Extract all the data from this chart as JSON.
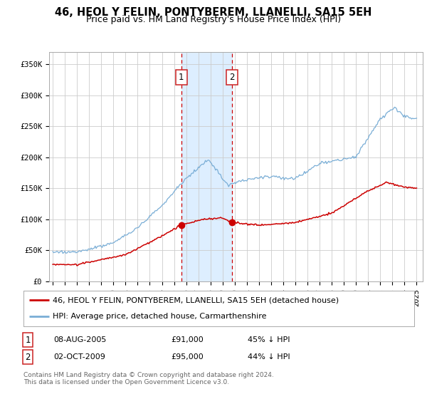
{
  "title": "46, HEOL Y FELIN, PONTYBEREM, LLANELLI, SA15 5EH",
  "subtitle": "Price paid vs. HM Land Registry's House Price Index (HPI)",
  "ylim": [
    0,
    370000
  ],
  "yticks": [
    0,
    50000,
    100000,
    150000,
    200000,
    250000,
    300000,
    350000
  ],
  "ytick_labels": [
    "£0",
    "£50K",
    "£100K",
    "£150K",
    "£200K",
    "£250K",
    "£300K",
    "£350K"
  ],
  "xlim_start": 1994.7,
  "xlim_end": 2025.5,
  "background_color": "#ffffff",
  "plot_bg_color": "#ffffff",
  "grid_color": "#cccccc",
  "sale1_date": 2005.6,
  "sale1_price": 91000,
  "sale2_date": 2009.76,
  "sale2_price": 95000,
  "sale1_text": "08-AUG-2005",
  "sale1_amount": "£91,000",
  "sale1_pct": "45% ↓ HPI",
  "sale2_text": "02-OCT-2009",
  "sale2_amount": "£95,000",
  "sale2_pct": "44% ↓ HPI",
  "legend_line1": "46, HEOL Y FELIN, PONTYBEREM, LLANELLI, SA15 5EH (detached house)",
  "legend_line2": "HPI: Average price, detached house, Carmarthenshire",
  "red_color": "#cc0000",
  "blue_color": "#7aaed6",
  "shade_color": "#ddeeff",
  "footer_text": "Contains HM Land Registry data © Crown copyright and database right 2024.\nThis data is licensed under the Open Government Licence v3.0.",
  "title_fontsize": 10.5,
  "subtitle_fontsize": 9,
  "tick_fontsize": 7.5,
  "legend_fontsize": 8,
  "sale_fontsize": 8,
  "footer_fontsize": 6.5
}
